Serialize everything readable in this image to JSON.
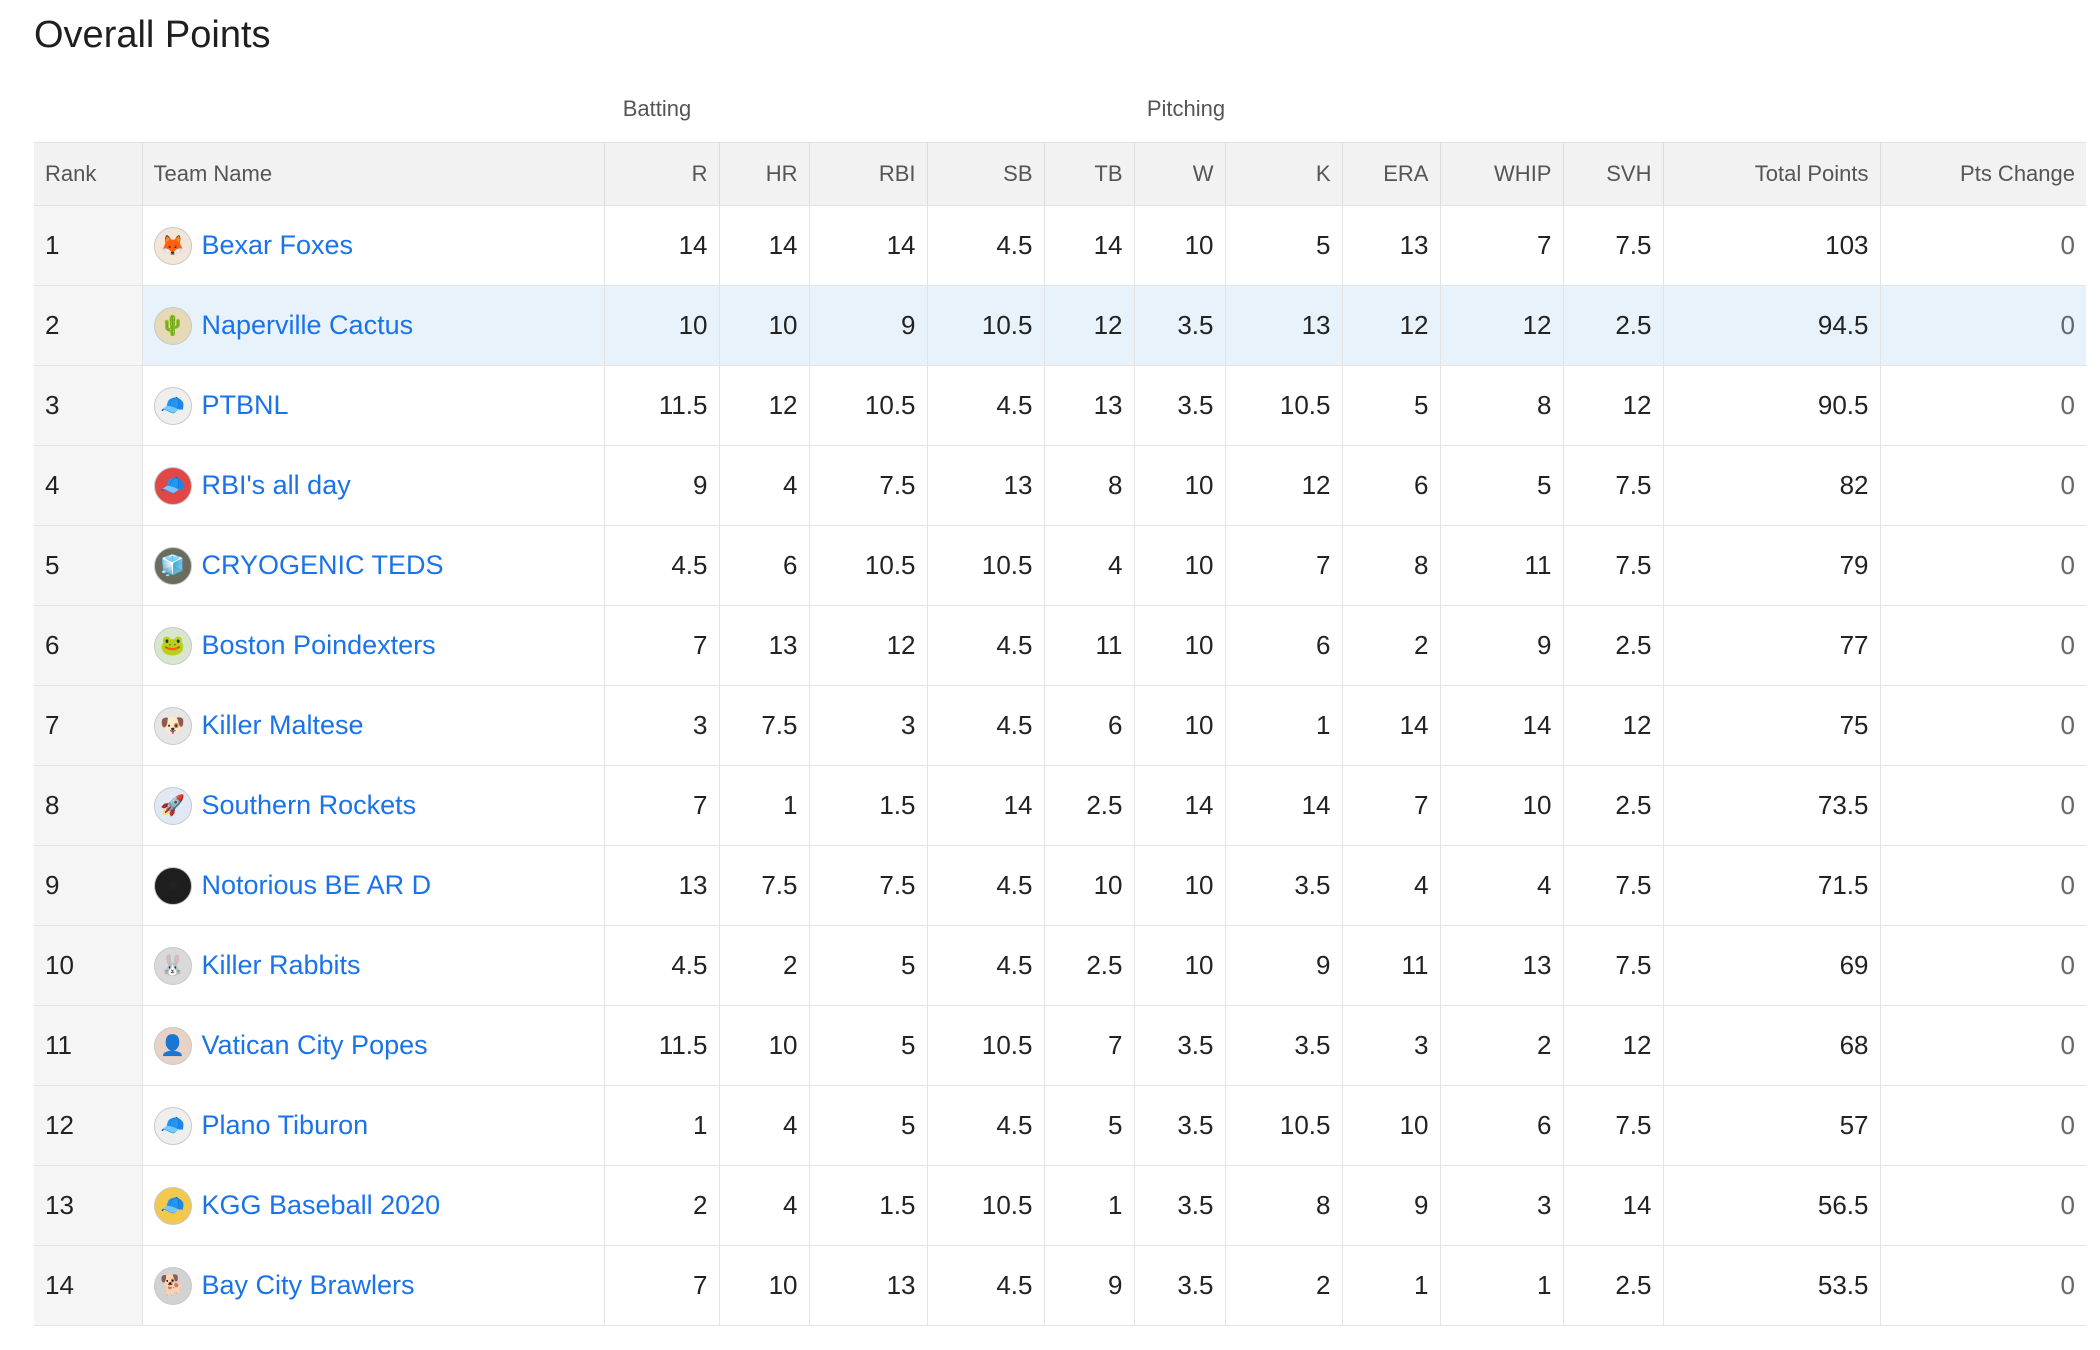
{
  "title": "Overall Points",
  "groups": {
    "batting": "Batting",
    "pitching": "Pitching"
  },
  "columns": [
    "Rank",
    "Team Name",
    "R",
    "HR",
    "RBI",
    "SB",
    "TB",
    "W",
    "K",
    "ERA",
    "WHIP",
    "SVH",
    "Total Points",
    "Pts Change"
  ],
  "rows": [
    {
      "rank": "1",
      "team": "Bexar Foxes",
      "icon": "fox-avatar-icon",
      "avatar_bg": "#f1e6d8",
      "glyph": "🦊",
      "R": "14",
      "HR": "14",
      "RBI": "14",
      "SB": "4.5",
      "TB": "14",
      "W": "10",
      "K": "5",
      "ERA": "13",
      "WHIP": "7",
      "SVH": "7.5",
      "total": "103",
      "change": "0"
    },
    {
      "rank": "2",
      "team": "Naperville Cactus",
      "icon": "cactus-avatar-icon",
      "avatar_bg": "#e5d9b8",
      "glyph": "🌵",
      "R": "10",
      "HR": "10",
      "RBI": "9",
      "SB": "10.5",
      "TB": "12",
      "W": "3.5",
      "K": "13",
      "ERA": "12",
      "WHIP": "12",
      "SVH": "2.5",
      "total": "94.5",
      "change": "0"
    },
    {
      "rank": "3",
      "team": "PTBNL",
      "icon": "cap-avatar-icon",
      "avatar_bg": "#eeeeee",
      "glyph": "🧢",
      "R": "11.5",
      "HR": "12",
      "RBI": "10.5",
      "SB": "4.5",
      "TB": "13",
      "W": "3.5",
      "K": "10.5",
      "ERA": "5",
      "WHIP": "8",
      "SVH": "12",
      "total": "90.5",
      "change": "0"
    },
    {
      "rank": "4",
      "team": "RBI's all day",
      "icon": "red-cap-avatar-icon",
      "avatar_bg": "#e04848",
      "glyph": "🧢",
      "R": "9",
      "HR": "4",
      "RBI": "7.5",
      "SB": "13",
      "TB": "8",
      "W": "10",
      "K": "12",
      "ERA": "6",
      "WHIP": "5",
      "SVH": "7.5",
      "total": "82",
      "change": "0"
    },
    {
      "rank": "5",
      "team": "CRYOGENIC TEDS",
      "icon": "cryo-avatar-icon",
      "avatar_bg": "#6b6b5e",
      "glyph": "🧊",
      "R": "4.5",
      "HR": "6",
      "RBI": "10.5",
      "SB": "10.5",
      "TB": "4",
      "W": "10",
      "K": "7",
      "ERA": "8",
      "WHIP": "11",
      "SVH": "7.5",
      "total": "79",
      "change": "0"
    },
    {
      "rank": "6",
      "team": "Boston Poindexters",
      "icon": "frog-avatar-icon",
      "avatar_bg": "#d8e6cf",
      "glyph": "🐸",
      "R": "7",
      "HR": "13",
      "RBI": "12",
      "SB": "4.5",
      "TB": "11",
      "W": "10",
      "K": "6",
      "ERA": "2",
      "WHIP": "9",
      "SVH": "2.5",
      "total": "77",
      "change": "0"
    },
    {
      "rank": "7",
      "team": "Killer Maltese",
      "icon": "dog-avatar-icon",
      "avatar_bg": "#e6e6e6",
      "glyph": "🐶",
      "R": "3",
      "HR": "7.5",
      "RBI": "3",
      "SB": "4.5",
      "TB": "6",
      "W": "10",
      "K": "1",
      "ERA": "14",
      "WHIP": "14",
      "SVH": "12",
      "total": "75",
      "change": "0"
    },
    {
      "rank": "8",
      "team": "Southern Rockets",
      "icon": "rocket-avatar-icon",
      "avatar_bg": "#dfe8f3",
      "glyph": "🚀",
      "R": "7",
      "HR": "1",
      "RBI": "1.5",
      "SB": "14",
      "TB": "2.5",
      "W": "14",
      "K": "14",
      "ERA": "7",
      "WHIP": "10",
      "SVH": "2.5",
      "total": "73.5",
      "change": "0"
    },
    {
      "rank": "9",
      "team": "Notorious BE AR D",
      "icon": "record-avatar-icon",
      "avatar_bg": "#1e1e1e",
      "glyph": "⚫",
      "R": "13",
      "HR": "7.5",
      "RBI": "7.5",
      "SB": "4.5",
      "TB": "10",
      "W": "10",
      "K": "3.5",
      "ERA": "4",
      "WHIP": "4",
      "SVH": "7.5",
      "total": "71.5",
      "change": "0"
    },
    {
      "rank": "10",
      "team": "Killer Rabbits",
      "icon": "rabbit-avatar-icon",
      "avatar_bg": "#d9d9d9",
      "glyph": "🐰",
      "R": "4.5",
      "HR": "2",
      "RBI": "5",
      "SB": "4.5",
      "TB": "2.5",
      "W": "10",
      "K": "9",
      "ERA": "11",
      "WHIP": "13",
      "SVH": "7.5",
      "total": "69",
      "change": "0"
    },
    {
      "rank": "11",
      "team": "Vatican City Popes",
      "icon": "pope-avatar-icon",
      "avatar_bg": "#e8d2c6",
      "glyph": "👤",
      "R": "11.5",
      "HR": "10",
      "RBI": "5",
      "SB": "10.5",
      "TB": "7",
      "W": "3.5",
      "K": "3.5",
      "ERA": "3",
      "WHIP": "2",
      "SVH": "12",
      "total": "68",
      "change": "0"
    },
    {
      "rank": "12",
      "team": "Plano Tiburon",
      "icon": "cap-avatar-icon",
      "avatar_bg": "#eeeeee",
      "glyph": "🧢",
      "R": "1",
      "HR": "4",
      "RBI": "5",
      "SB": "4.5",
      "TB": "5",
      "W": "3.5",
      "K": "10.5",
      "ERA": "10",
      "WHIP": "6",
      "SVH": "7.5",
      "total": "57",
      "change": "0"
    },
    {
      "rank": "13",
      "team": "KGG Baseball 2020",
      "icon": "green-cap-avatar-icon",
      "avatar_bg": "#f2c94c",
      "glyph": "🧢",
      "R": "2",
      "HR": "4",
      "RBI": "1.5",
      "SB": "10.5",
      "TB": "1",
      "W": "3.5",
      "K": "8",
      "ERA": "9",
      "WHIP": "3",
      "SVH": "14",
      "total": "56.5",
      "change": "0"
    },
    {
      "rank": "14",
      "team": "Bay City Brawlers",
      "icon": "dog-avatar-icon",
      "avatar_bg": "#d2d2d2",
      "glyph": "🐕",
      "R": "7",
      "HR": "10",
      "RBI": "13",
      "SB": "4.5",
      "TB": "9",
      "W": "3.5",
      "K": "2",
      "ERA": "1",
      "WHIP": "1",
      "SVH": "2.5",
      "total": "53.5",
      "change": "0"
    }
  ]
}
